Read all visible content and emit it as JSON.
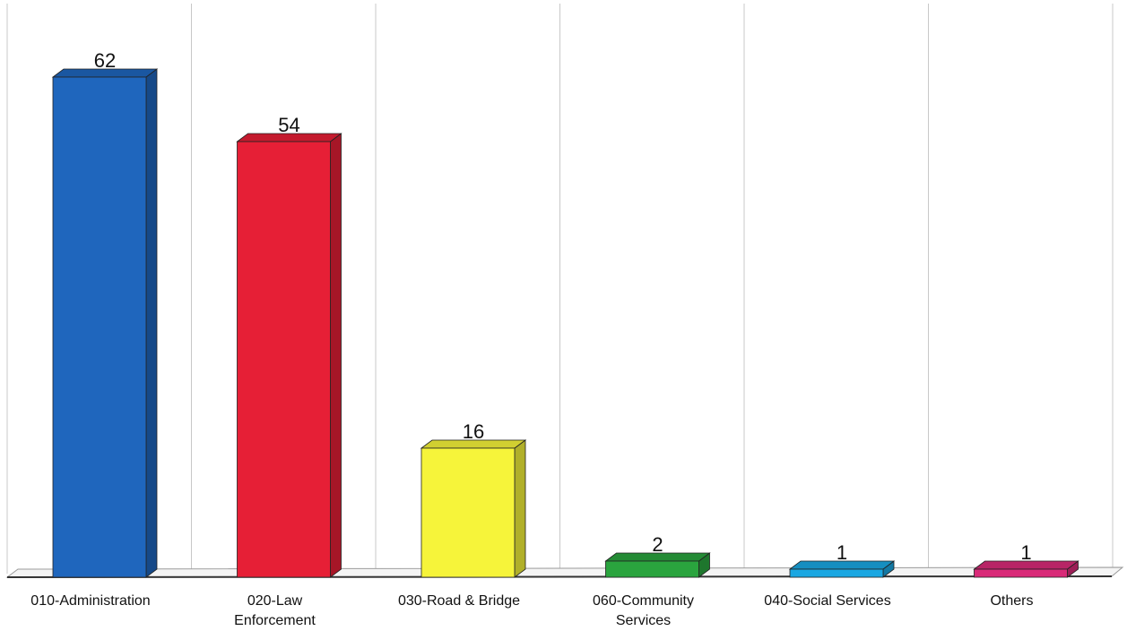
{
  "chart_data": {
    "type": "bar",
    "categories": [
      "010-Administration",
      "020-Law Enforcement",
      "030-Road & Bridge",
      "060-Community Services",
      "040-Social Services",
      "Others"
    ],
    "category_lines": [
      [
        "010-Administration"
      ],
      [
        "020-Law",
        "Enforcement"
      ],
      [
        "030-Road & Bridge"
      ],
      [
        "060-Community",
        "Services"
      ],
      [
        "040-Social Services"
      ],
      [
        "Others"
      ]
    ],
    "values": [
      62,
      54,
      16,
      2,
      1,
      1
    ],
    "data_labels": [
      "62",
      "54",
      "16",
      "2",
      "1",
      "1"
    ],
    "colors": [
      "#1f66bd",
      "#e61f36",
      "#f6f43a",
      "#2aa43e",
      "#1aa7e2",
      "#d92a78"
    ],
    "title": "",
    "xlabel": "",
    "ylabel": "",
    "ylim": [
      0,
      62
    ],
    "grid": "vertical-lines",
    "legend": "none",
    "style": "3d"
  }
}
